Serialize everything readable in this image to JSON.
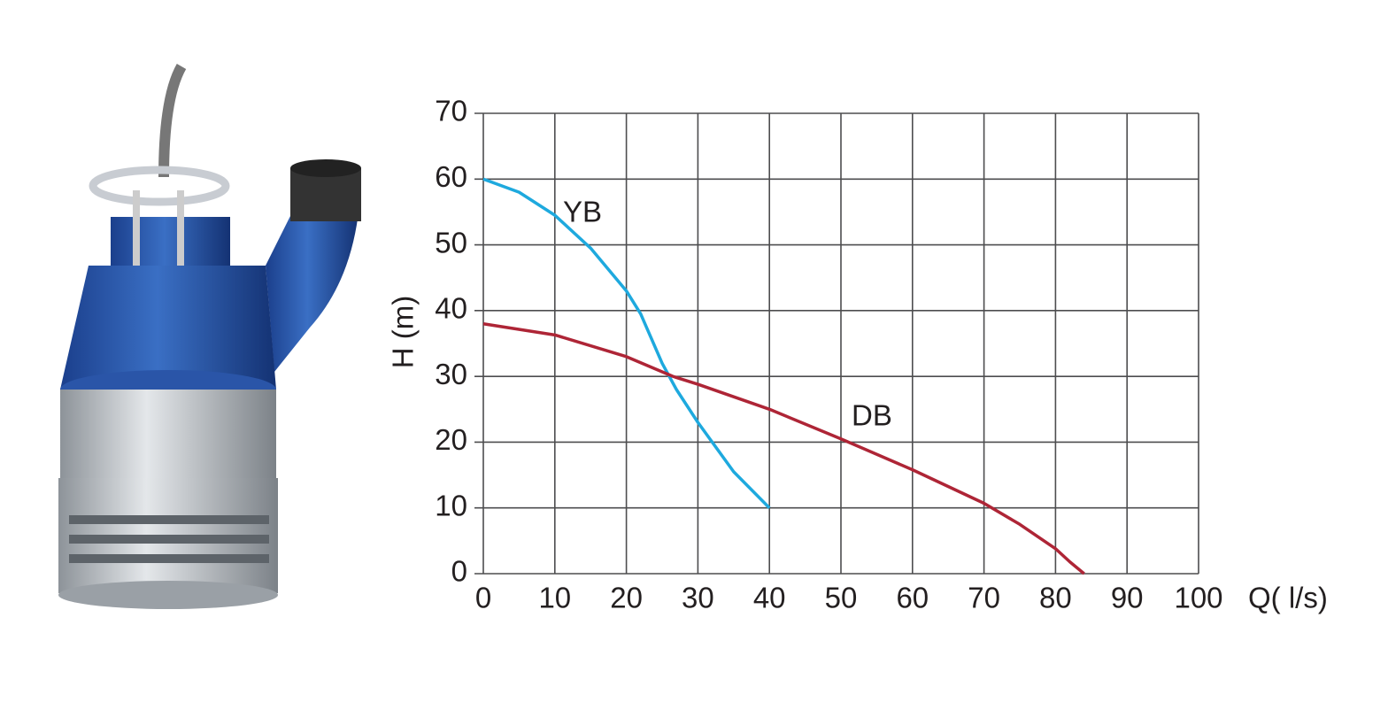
{
  "chart_data": {
    "type": "line",
    "xlabel": "Q( l/s)",
    "ylabel": "H (m)",
    "xlim": [
      0,
      100
    ],
    "ylim": [
      0,
      70
    ],
    "xticks": [
      0,
      10,
      20,
      30,
      40,
      50,
      60,
      70,
      80,
      90,
      100
    ],
    "yticks": [
      0,
      10,
      20,
      30,
      40,
      50,
      60,
      70
    ],
    "grid": true,
    "series": [
      {
        "name": "YB",
        "color": "#1ea9de",
        "x": [
          0,
          5,
          10,
          15,
          20,
          22,
          23,
          25,
          27,
          30,
          35,
          40
        ],
        "values": [
          60,
          58,
          54.5,
          49.5,
          43,
          39.5,
          37,
          32,
          28,
          23,
          15.5,
          10
        ]
      },
      {
        "name": "DB",
        "color": "#ae2536",
        "x": [
          0,
          10,
          20,
          26.5,
          30,
          40,
          50,
          60,
          70,
          75,
          80,
          82,
          84
        ],
        "values": [
          38,
          36.3,
          33,
          30,
          28.8,
          25,
          20.5,
          15.8,
          10.7,
          7.5,
          3.8,
          1.8,
          0
        ]
      }
    ]
  }
}
